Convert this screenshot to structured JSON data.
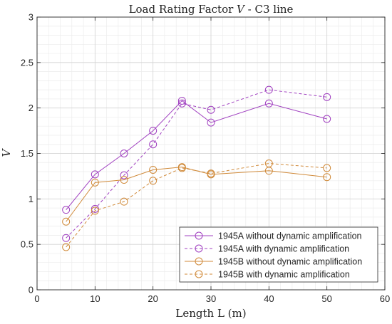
{
  "chart_data": {
    "type": "line",
    "title_prefix": "Load Rating Factor ",
    "title_var": "V",
    "title_suffix": " - C3 line",
    "xlabel": "Length L (m)",
    "ylabel": "V",
    "xlim": [
      0,
      60
    ],
    "ylim": [
      0,
      3
    ],
    "xticks": [
      0,
      10,
      20,
      30,
      40,
      50,
      60
    ],
    "xtick_labels": [
      "0",
      "10",
      "20",
      "30",
      "40",
      "50",
      "60"
    ],
    "yticks": [
      0,
      0.5,
      1,
      1.5,
      2,
      2.5,
      3
    ],
    "ytick_labels": [
      "0",
      "0.5",
      "1",
      "1.5",
      "2",
      "2.5",
      "3"
    ],
    "grid": true,
    "legend_position": "bottom-right",
    "x": [
      5,
      10,
      15,
      20,
      25,
      30,
      40,
      50
    ],
    "series": [
      {
        "name": "1945A without dynamic amplification",
        "color": "#a040c0",
        "dash": "solid",
        "values": [
          0.88,
          1.27,
          1.5,
          1.75,
          2.08,
          1.84,
          2.05,
          1.88
        ]
      },
      {
        "name": "1945A with dynamic amplification",
        "color": "#a040c0",
        "dash": "dashed",
        "values": [
          0.57,
          0.89,
          1.26,
          1.6,
          2.05,
          1.98,
          2.2,
          2.12
        ]
      },
      {
        "name": "1945B without dynamic amplification",
        "color": "#d08a3a",
        "dash": "solid",
        "values": [
          0.75,
          1.18,
          1.21,
          1.32,
          1.35,
          1.27,
          1.31,
          1.24
        ]
      },
      {
        "name": "1945B with dynamic amplification",
        "color": "#d08a3a",
        "dash": "dashed",
        "values": [
          0.47,
          0.87,
          0.97,
          1.2,
          1.34,
          1.28,
          1.39,
          1.34
        ]
      }
    ]
  }
}
